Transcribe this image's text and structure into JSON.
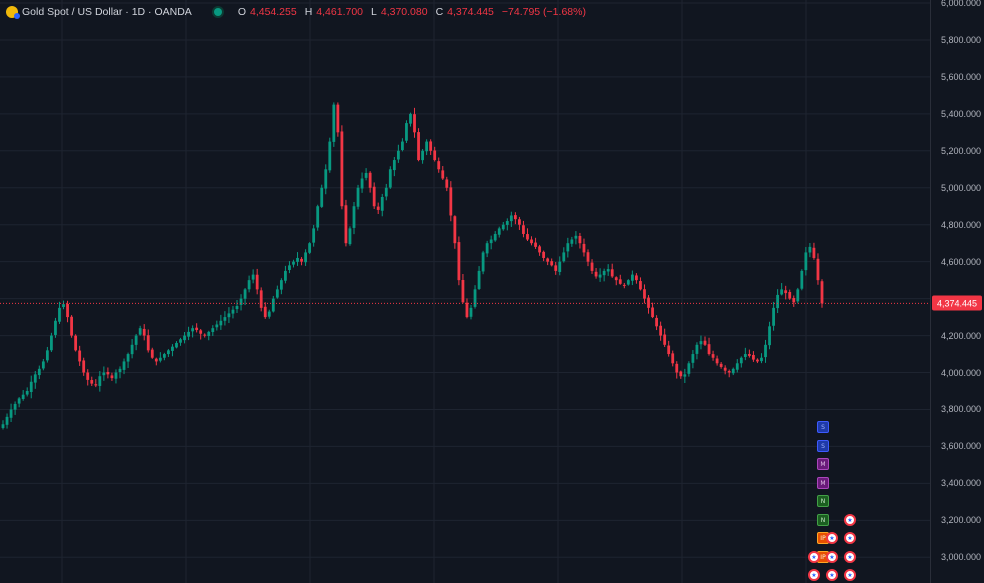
{
  "legend": {
    "symbol": "Gold Spot / US Dollar · 1D · OANDA",
    "open_key": "O",
    "open": "4,454.255",
    "high_key": "H",
    "high": "4,461.700",
    "low_key": "L",
    "low": "4,370.080",
    "close_key": "C",
    "close": "4,374.445",
    "change": "−74.795 (−1.68%)"
  },
  "last_price": "4,374.445",
  "colors": {
    "up": "#089981",
    "down": "#f23645",
    "background": "#111620",
    "grid": "#1e2430"
  },
  "chart_data": {
    "type": "candlestick",
    "ylim": [
      2850,
      6000
    ],
    "y_ticks": [
      "6,000.000",
      "5,800.000",
      "5,600.000",
      "5,400.000",
      "5,200.000",
      "5,000.000",
      "4,800.000",
      "4,600.000",
      "4,400.000",
      "4,200.000",
      "4,000.000",
      "3,800.000",
      "3,600.000",
      "3,400.000",
      "3,200.000",
      "3,000.000"
    ],
    "y_tick_values": [
      6000,
      5800,
      5600,
      5400,
      5200,
      5000,
      4800,
      4600,
      4400,
      4200,
      4000,
      3800,
      3600,
      3400,
      3200,
      3000
    ],
    "close_path": [
      3720,
      3760,
      3800,
      3830,
      3860,
      3880,
      3900,
      3950,
      3990,
      4020,
      4060,
      4120,
      4200,
      4280,
      4350,
      4370,
      4300,
      4200,
      4120,
      4060,
      4000,
      3960,
      3940,
      3930,
      3980,
      4000,
      3990,
      3970,
      4000,
      4020,
      4060,
      4100,
      4150,
      4200,
      4240,
      4200,
      4120,
      4080,
      4060,
      4080,
      4100,
      4120,
      4140,
      4160,
      4180,
      4200,
      4220,
      4240,
      4230,
      4210,
      4200,
      4220,
      4240,
      4260,
      4280,
      4300,
      4320,
      4340,
      4360,
      4400,
      4450,
      4500,
      4530,
      4450,
      4350,
      4300,
      4330,
      4400,
      4450,
      4500,
      4550,
      4580,
      4600,
      4620,
      4600,
      4650,
      4700,
      4780,
      4900,
      5000,
      5100,
      5250,
      5450,
      5300,
      4900,
      4700,
      4780,
      4900,
      5000,
      5050,
      5080,
      5000,
      4900,
      4880,
      4950,
      5000,
      5100,
      5150,
      5200,
      5250,
      5350,
      5400,
      5300,
      5150,
      5200,
      5250,
      5200,
      5150,
      5100,
      5050,
      5000,
      4850,
      4700,
      4500,
      4380,
      4300,
      4350,
      4450,
      4550,
      4650,
      4700,
      4720,
      4750,
      4780,
      4800,
      4820,
      4850,
      4830,
      4800,
      4750,
      4720,
      4700,
      4680,
      4650,
      4620,
      4600,
      4580,
      4550,
      4600,
      4650,
      4700,
      4720,
      4740,
      4700,
      4650,
      4600,
      4550,
      4520,
      4530,
      4550,
      4560,
      4520,
      4500,
      4480,
      4470,
      4500,
      4530,
      4500,
      4450,
      4400,
      4350,
      4300,
      4250,
      4200,
      4150,
      4100,
      4050,
      4000,
      3980,
      3990,
      4050,
      4100,
      4150,
      4170,
      4150,
      4100,
      4080,
      4050,
      4030,
      4010,
      4000,
      4020,
      4050,
      4080,
      4100,
      4090,
      4070,
      4060,
      4080,
      4150,
      4250,
      4350,
      4420,
      4450,
      4430,
      4400,
      4380,
      4450,
      4550,
      4650,
      4680,
      4620,
      4500,
      4374
    ]
  },
  "event_markers": [
    {
      "icon": "pmi-event-icon",
      "label": "S",
      "kind": "ev-blue"
    },
    {
      "icon": "pmi-event-icon",
      "label": "S",
      "kind": "ev-blue"
    },
    {
      "icon": "earnings-event-icon",
      "label": "M",
      "kind": "ev-purple"
    },
    {
      "icon": "earnings-event-icon",
      "label": "M",
      "kind": "ev-purple"
    },
    {
      "icon": "news-event-icon",
      "label": "N",
      "kind": "ev-green"
    },
    {
      "icon": "news-event-icon",
      "label": "N",
      "kind": "ev-green"
    },
    {
      "icon": "ipo-event-icon",
      "label": "IP",
      "kind": "ev-orange"
    },
    {
      "icon": "ipo-event-icon",
      "label": "IP",
      "kind": "ev-orange"
    },
    {
      "icon": "us-flag-icon",
      "label": "★",
      "kind": "flag-us"
    }
  ]
}
